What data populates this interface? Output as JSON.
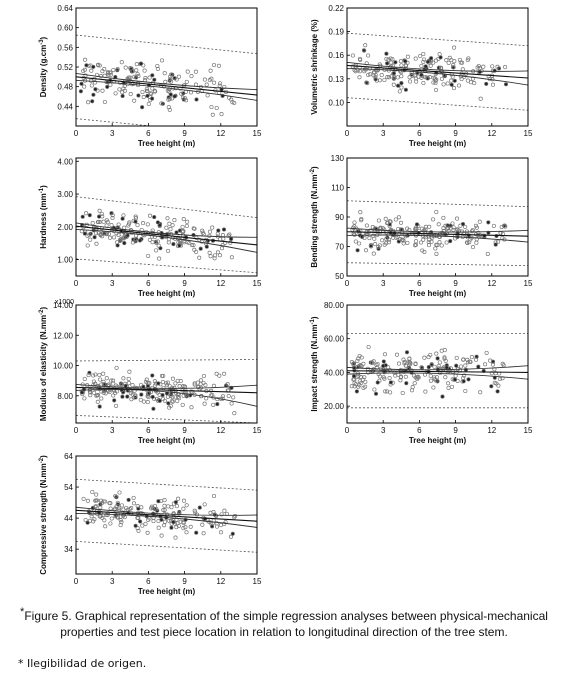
{
  "caption": {
    "star": "*",
    "text": "Figure 5. Graphical representation of the simple regression analyses between physical-mechanical properties and test piece location in relation to longitudinal direction of the tree stem."
  },
  "footnote": "* Ilegibilidad de origen.",
  "colors": {
    "points": "#777777",
    "lines": "#333333",
    "axes": "#000000"
  },
  "chart_data": [
    {
      "type": "scatter",
      "xlabel": "Tree height (m)",
      "ylabel": "Density (g.cm-3)",
      "xlim": [
        0,
        15
      ],
      "ylim": [
        0.4,
        0.64
      ],
      "xticks": [
        0,
        3,
        6,
        9,
        12,
        15
      ],
      "yticks": [
        0.44,
        0.48,
        0.52,
        0.56,
        0.6,
        0.64
      ],
      "ytick_labels": [
        "0.44",
        "0.48",
        "0.52",
        "0.56",
        "0.60",
        "0.64"
      ],
      "regression": {
        "fit": [
          0.5,
          0.463
        ],
        "ci": [
          0.507,
          0.474,
          0.493,
          0.452
        ],
        "pi": [
          0.585,
          0.547,
          0.415,
          0.379
        ]
      },
      "noise": 0.038,
      "n": 190,
      "seed": 11
    },
    {
      "type": "scatter",
      "xlabel": "Tree height (m)",
      "ylabel": "Volumetric shrinkage (%)",
      "xlim": [
        0,
        15
      ],
      "ylim": [
        0.07,
        0.22
      ],
      "xticks": [
        0,
        3,
        6,
        9,
        12,
        15
      ],
      "yticks": [
        0.1,
        0.13,
        0.16,
        0.19,
        0.22
      ],
      "ytick_labels": [
        "0.10",
        "0.13",
        "0.16",
        "0.19",
        "0.22"
      ],
      "regression": {
        "fit": [
          0.147,
          0.131
        ],
        "ci": [
          0.151,
          0.14,
          0.143,
          0.122
        ],
        "pi": [
          0.188,
          0.172,
          0.106,
          0.09
        ]
      },
      "noise": 0.02,
      "n": 200,
      "seed": 23
    },
    {
      "type": "scatter",
      "xlabel": "Tree height (m)",
      "ylabel": "Hardness (mm-1)",
      "xlim": [
        0,
        15
      ],
      "ylim": [
        0.5,
        4.1
      ],
      "xticks": [
        0,
        3,
        6,
        9,
        12,
        15
      ],
      "yticks": [
        1.0,
        2.0,
        3.0,
        4.0
      ],
      "ytick_labels": [
        "1.00",
        "2.00",
        "3.00",
        "4.00"
      ],
      "regression": {
        "fit": [
          2.02,
          1.45
        ],
        "ci": [
          2.12,
          1.68,
          1.92,
          1.22
        ],
        "pi": [
          2.92,
          2.28,
          1.02,
          0.6
        ]
      },
      "noise": 0.45,
      "n": 230,
      "seed": 37
    },
    {
      "type": "scatter",
      "xlabel": "Tree height (m)",
      "ylabel": "Bending strength (N.mm-2)",
      "xlim": [
        0,
        15
      ],
      "ylim": [
        50,
        130
      ],
      "xticks": [
        0,
        3,
        6,
        9,
        12,
        15
      ],
      "yticks": [
        50,
        70,
        90,
        110,
        130
      ],
      "ytick_labels": [
        "50",
        "70",
        "90",
        "110",
        "130"
      ],
      "regression": {
        "fit": [
          80,
          77
        ],
        "ci": [
          82.5,
          81,
          77.5,
          73
        ],
        "pi": [
          101,
          97,
          59,
          57
        ]
      },
      "noise": 9,
      "n": 230,
      "seed": 41
    },
    {
      "type": "scatter",
      "xlabel": "Tree height (m)",
      "ylabel": "Modulus of elasticity (N.mm-2)",
      "multiplier": "x1000",
      "xlim": [
        0,
        15
      ],
      "ylim": [
        6.2,
        14.0
      ],
      "xticks": [
        0,
        3,
        6,
        9,
        12,
        15
      ],
      "yticks": [
        8.0,
        10.0,
        12.0,
        14.0
      ],
      "ytick_labels": [
        "8.00",
        "10.00",
        "12.00",
        "14.00"
      ],
      "regression": {
        "fit": [
          8.55,
          8.2
        ],
        "ci": [
          8.75,
          8.7,
          8.35,
          7.3
        ],
        "pi": [
          10.3,
          10.4,
          6.7,
          6.2
        ]
      },
      "noise": 0.85,
      "n": 240,
      "seed": 53
    },
    {
      "type": "scatter",
      "xlabel": "Tree height (m)",
      "ylabel": "Impact strength (N.mm-1)",
      "xlim": [
        0,
        15
      ],
      "ylim": [
        10,
        80
      ],
      "xticks": [
        0,
        3,
        6,
        9,
        12,
        15
      ],
      "yticks": [
        20.0,
        40.0,
        60.0,
        80.0
      ],
      "ytick_labels": [
        "20.00",
        "40.00",
        "60.00",
        "80.00"
      ],
      "regression": {
        "fit": [
          41,
          40
        ],
        "ci": [
          43,
          44,
          39,
          36
        ],
        "pi": [
          63,
          63,
          19,
          19
        ]
      },
      "noise": 10,
      "n": 230,
      "seed": 67
    },
    {
      "type": "scatter",
      "xlabel": "Tree height (m)",
      "ylabel": "Compressive strength (N.mm-2)",
      "xlim": [
        0,
        15
      ],
      "ylim": [
        26,
        64
      ],
      "xticks": [
        0,
        3,
        6,
        9,
        12,
        15
      ],
      "yticks": [
        34,
        44,
        54,
        64
      ],
      "ytick_labels": [
        "34",
        "44",
        "54",
        "64"
      ],
      "regression": {
        "fit": [
          46.5,
          43.0
        ],
        "ci": [
          47.5,
          45.0,
          45.5,
          41.0
        ],
        "pi": [
          56.5,
          53.0,
          36.5,
          33.0
        ]
      },
      "noise": 5,
      "n": 200,
      "seed": 79
    }
  ]
}
